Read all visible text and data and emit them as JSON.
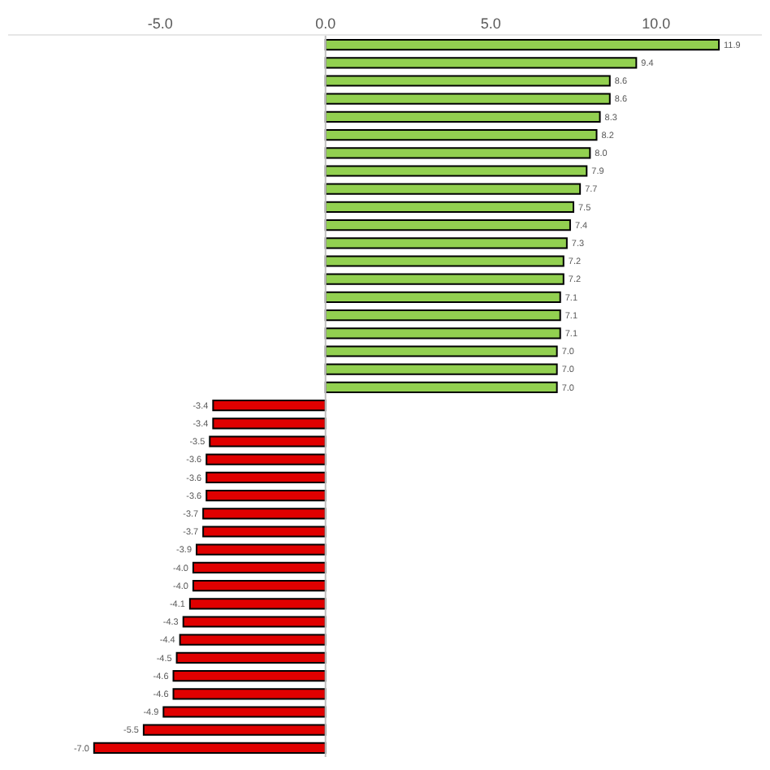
{
  "chart_data": {
    "type": "bar",
    "orientation": "horizontal",
    "categories": [
      null,
      null,
      null,
      null,
      null,
      null,
      null,
      null,
      null,
      null,
      null,
      null,
      null,
      null,
      null,
      null,
      null,
      null,
      null,
      null,
      null,
      null,
      null,
      null,
      null,
      null,
      null,
      null,
      null,
      null,
      null,
      null,
      null,
      null,
      null,
      null,
      null,
      null,
      null,
      null
    ],
    "values": [
      11.9,
      9.4,
      8.6,
      8.6,
      8.3,
      8.2,
      8.0,
      7.9,
      7.7,
      7.5,
      7.4,
      7.3,
      7.2,
      7.2,
      7.1,
      7.1,
      7.1,
      7.0,
      7.0,
      7.0,
      -3.4,
      -3.4,
      -3.5,
      -3.6,
      -3.6,
      -3.6,
      -3.7,
      -3.7,
      -3.9,
      -4.0,
      -4.0,
      -4.1,
      -4.3,
      -4.4,
      -4.5,
      -4.6,
      -4.6,
      -4.9,
      -5.5,
      -7.0
    ],
    "value_labels": [
      "11.9",
      "9.4",
      "8.6",
      "8.6",
      "8.3",
      "8.2",
      "8.0",
      "7.9",
      "7.7",
      "7.5",
      "7.4",
      "7.3",
      "7.2",
      "7.2",
      "7.1",
      "7.1",
      "7.1",
      "7.0",
      "7.0",
      "7.0",
      "-3.4",
      "-3.4",
      "-3.5",
      "-3.6",
      "-3.6",
      "-3.6",
      "-3.7",
      "-3.7",
      "-3.9",
      "-4.0",
      "-4.0",
      "-4.1",
      "-4.3",
      "-4.4",
      "-4.5",
      "-4.6",
      "-4.6",
      "-4.9",
      "-5.5",
      "-7.0"
    ],
    "colors": [
      "#92d050",
      "#92d050",
      "#92d050",
      "#92d050",
      "#92d050",
      "#92d050",
      "#92d050",
      "#92d050",
      "#92d050",
      "#92d050",
      "#92d050",
      "#92d050",
      "#92d050",
      "#92d050",
      "#92d050",
      "#92d050",
      "#92d050",
      "#92d050",
      "#92d050",
      "#92d050",
      "#e00000",
      "#e00000",
      "#e00000",
      "#e00000",
      "#e00000",
      "#e00000",
      "#e00000",
      "#e00000",
      "#e00000",
      "#e00000",
      "#e00000",
      "#e00000",
      "#e00000",
      "#e00000",
      "#e00000",
      "#e00000",
      "#e00000",
      "#e00000",
      "#e00000",
      "#e00000"
    ],
    "xlim": [
      -9.6,
      13.2
    ],
    "xticks": [
      {
        "value": -5,
        "label": "-5.0"
      },
      {
        "value": 0,
        "label": "0.0"
      },
      {
        "value": 5,
        "label": "5.0"
      },
      {
        "value": 10,
        "label": "10.0"
      }
    ],
    "ref_lines": [
      {
        "axis": "x",
        "value": 0,
        "color": "#bfbfbf"
      }
    ],
    "tick_labels": "x",
    "grid": false,
    "legend": false
  }
}
